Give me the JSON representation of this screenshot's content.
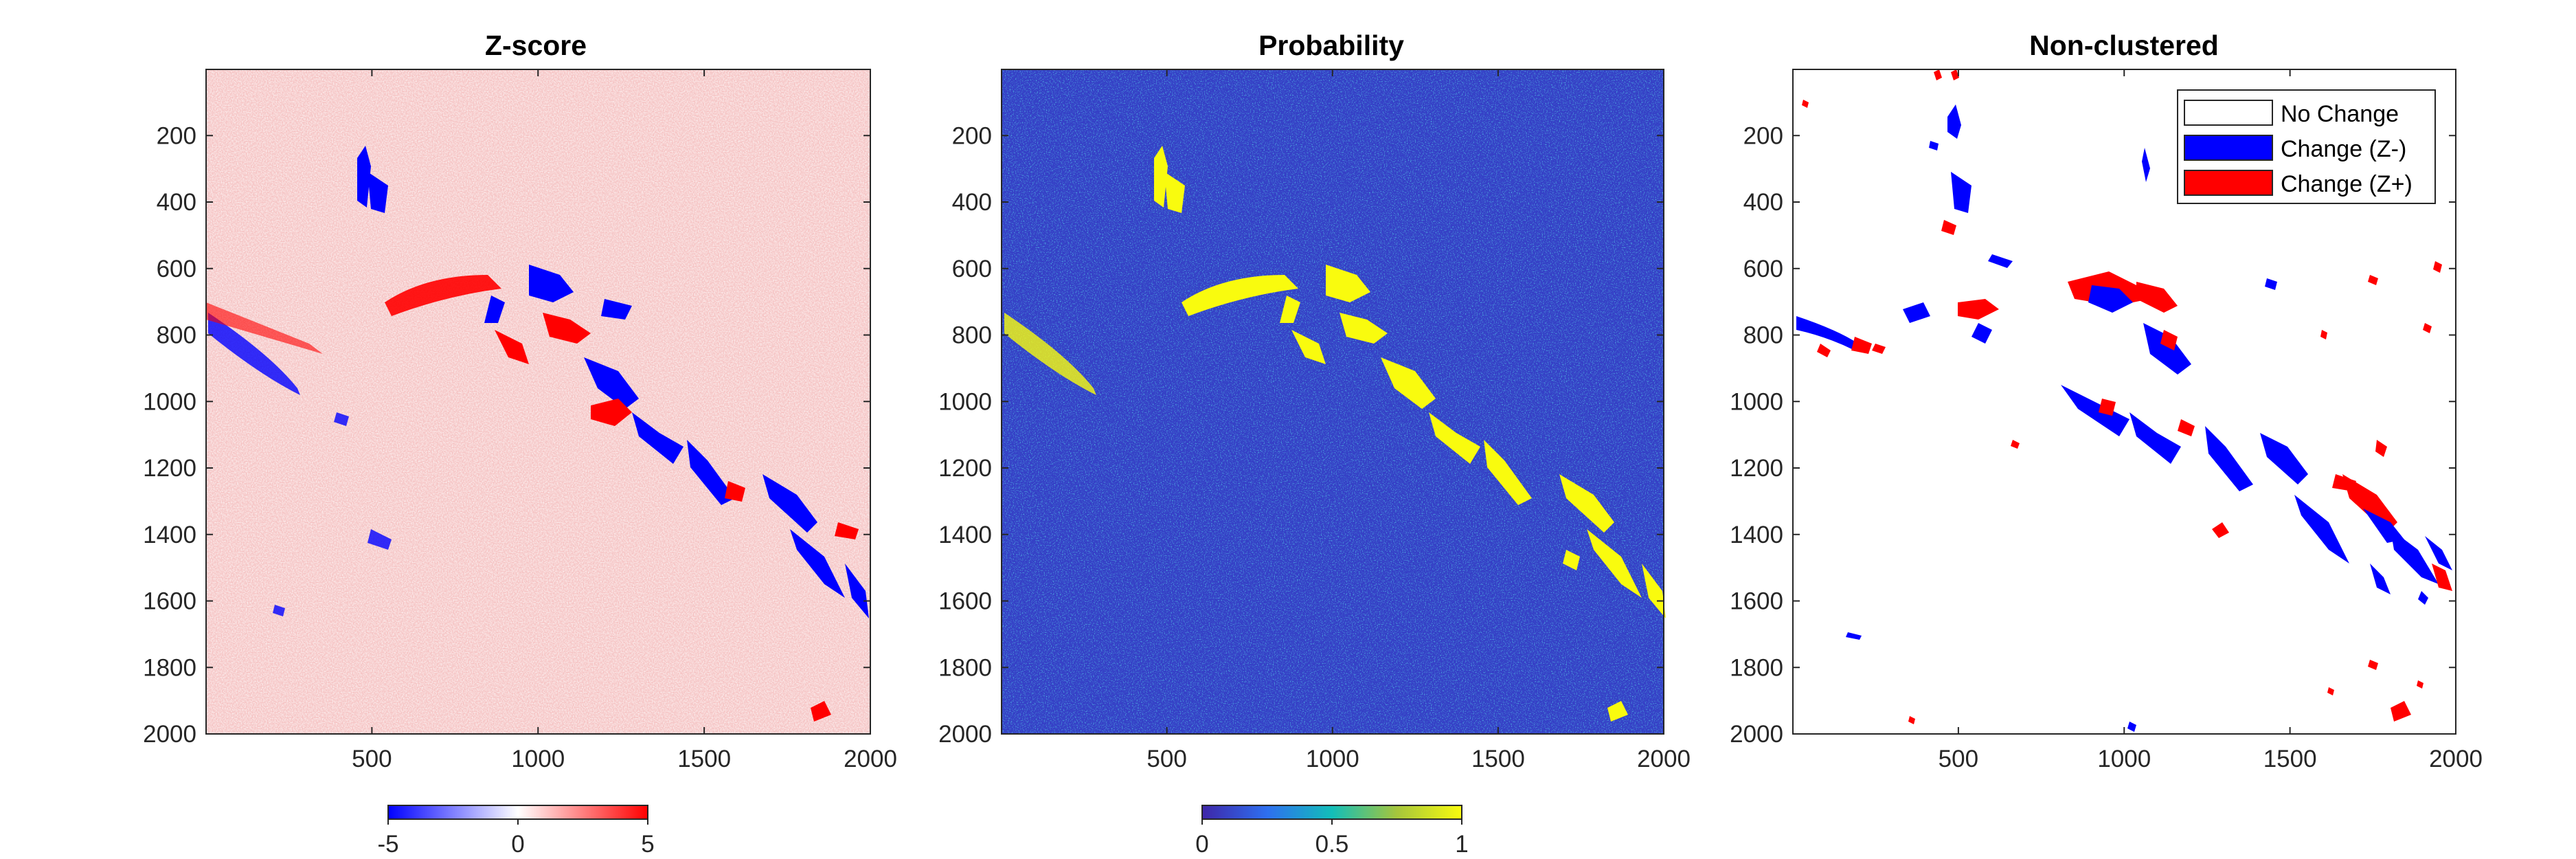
{
  "figure": {
    "panels": [
      {
        "title": "Z-score"
      },
      {
        "title": "Probability"
      },
      {
        "title": "Non-clustered"
      }
    ]
  },
  "chart_data": [
    {
      "type": "heatmap",
      "title": "Z-score",
      "x_ticks": [
        500,
        1000,
        1500,
        2000
      ],
      "y_ticks": [
        200,
        400,
        600,
        800,
        1000,
        1200,
        1400,
        1600,
        1800,
        2000
      ],
      "xlim": [
        1,
        2000
      ],
      "ylim": [
        1,
        2000
      ],
      "y_direction": "reverse",
      "colormap": "blue-white-red",
      "colorbar": {
        "placement": "bottom",
        "ticks": [
          "-5",
          "0",
          "5"
        ],
        "range": [
          -5,
          5
        ]
      },
      "colors": {
        "low": "#0000ff",
        "mid": "#ffffff",
        "high": "#ff0000",
        "background": "#f5c3c3"
      }
    },
    {
      "type": "heatmap",
      "title": "Probability",
      "x_ticks": [
        500,
        1000,
        1500,
        2000
      ],
      "y_ticks": [
        200,
        400,
        600,
        800,
        1000,
        1200,
        1400,
        1600,
        1800,
        2000
      ],
      "xlim": [
        1,
        2000
      ],
      "ylim": [
        1,
        2000
      ],
      "y_direction": "reverse",
      "colormap": "parula",
      "colorbar": {
        "placement": "bottom",
        "ticks": [
          "0",
          "0.5",
          "1"
        ],
        "range": [
          0,
          1
        ]
      },
      "colors": {
        "low": "#3e26a8",
        "mid": "#12beb9",
        "high": "#f9fb0e",
        "background": "#3540c6"
      }
    },
    {
      "type": "heatmap",
      "title": "Non-clustered",
      "x_ticks": [
        500,
        1000,
        1500,
        2000
      ],
      "y_ticks": [
        200,
        400,
        600,
        800,
        1000,
        1200,
        1400,
        1600,
        1800,
        2000
      ],
      "xlim": [
        1,
        2000
      ],
      "ylim": [
        1,
        2000
      ],
      "y_direction": "reverse",
      "legend": {
        "placement": "top-right",
        "entries": [
          {
            "label": "No Change",
            "color": "#ffffff"
          },
          {
            "label": "Change (Z-)",
            "color": "#0000ff"
          },
          {
            "label": "Change (Z+)",
            "color": "#ff0000"
          }
        ]
      }
    }
  ]
}
